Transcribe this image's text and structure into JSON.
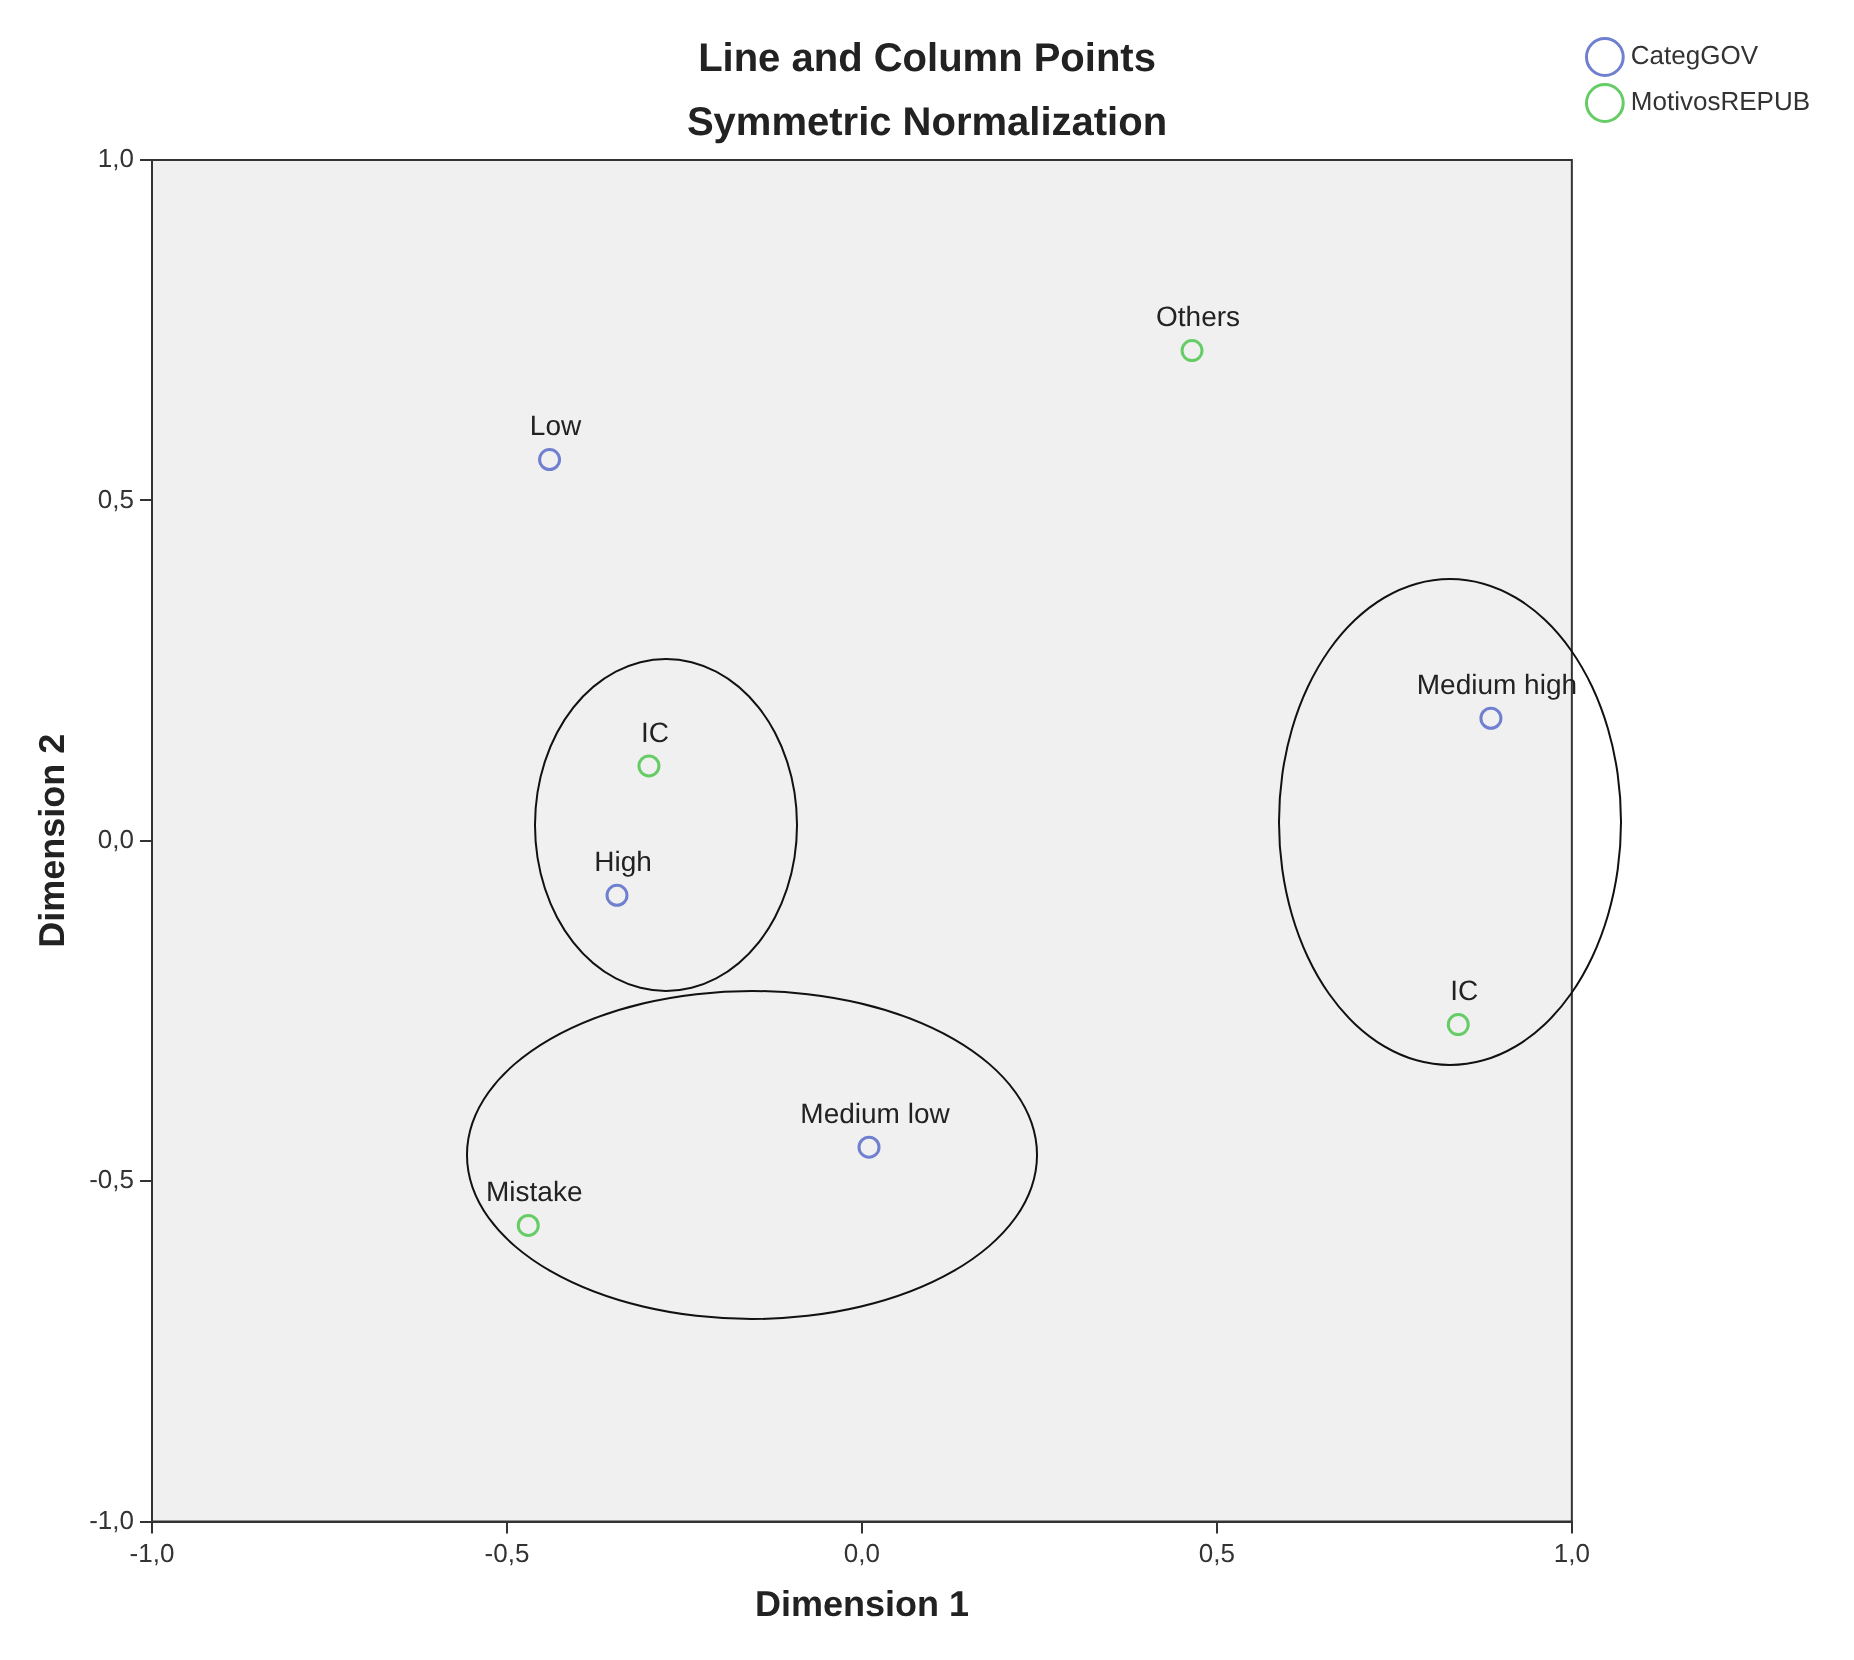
{
  "chart_data": {
    "type": "scatter",
    "title": "Line and Column Points",
    "subtitle": "Symmetric Normalization",
    "xlabel": "Dimension 1",
    "ylabel": "Dimension 2",
    "series": [
      {
        "name": "CategGOV",
        "color": "#7080d0",
        "x": [
          -0.44,
          -0.345,
          0.886,
          0.01
        ],
        "values": [
          0.56,
          -0.08,
          0.18,
          -0.45
        ]
      },
      {
        "name": "MotivosREPUB",
        "color": "#66cc66",
        "x": [
          0.465,
          -0.3,
          0.84,
          -0.47
        ],
        "values": [
          0.72,
          0.11,
          -0.27,
          -0.565
        ]
      }
    ],
    "annotations": [
      {
        "text": "Low",
        "x": -0.44,
        "y": 0.56
      },
      {
        "text": "High",
        "x": -0.345,
        "y": -0.08
      },
      {
        "text": "Medium high",
        "x": 0.886,
        "y": 0.18
      },
      {
        "text": "Medium low",
        "x": 0.01,
        "y": -0.45
      },
      {
        "text": "Others",
        "x": 0.465,
        "y": 0.72
      },
      {
        "text": "IC",
        "x": -0.3,
        "y": 0.11
      },
      {
        "text": "IC",
        "x": 0.84,
        "y": -0.27
      },
      {
        "text": "Mistake",
        "x": -0.47,
        "y": -0.565
      }
    ],
    "xlim": [
      -1,
      1
    ],
    "ylim": [
      -1,
      1
    ],
    "xticks": [
      {
        "value": -1,
        "label": "-1,0"
      },
      {
        "value": -0.5,
        "label": "-0,5"
      },
      {
        "value": 0,
        "label": "0,0"
      },
      {
        "value": 0.5,
        "label": "0,5"
      },
      {
        "value": 1,
        "label": "1,0"
      }
    ],
    "yticks": [
      {
        "value": -1,
        "label": "-1,0"
      },
      {
        "value": -0.5,
        "label": "-0,5"
      },
      {
        "value": 0,
        "label": "0,0"
      },
      {
        "value": 0.5,
        "label": "0,5"
      },
      {
        "value": 1,
        "label": "1,0"
      }
    ],
    "grid": false,
    "legend": "top right",
    "marker": "circle"
  }
}
